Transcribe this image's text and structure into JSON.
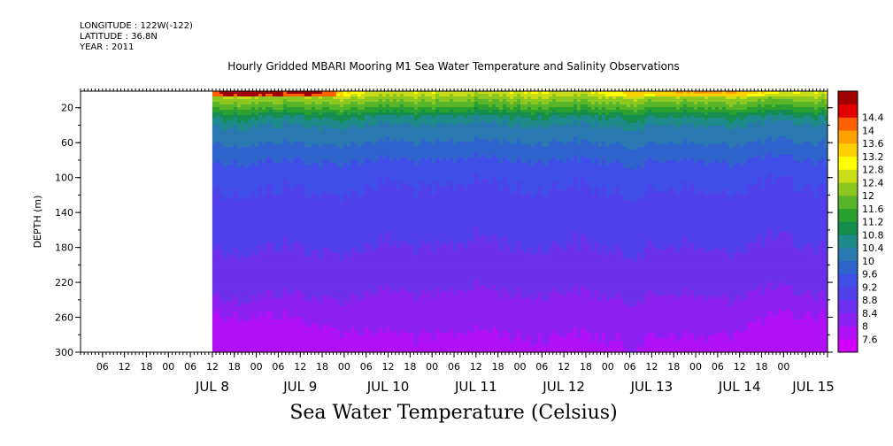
{
  "header": {
    "longitude": "LONGITUDE : 122W(-122)",
    "latitude": "LATITUDE : 36.8N",
    "year": "YEAR : 2011"
  },
  "title": "Hourly Gridded MBARI Mooring M1 Sea Water Temperature and Salinity Observations",
  "subtitle": "Sea Water Temperature (Celsius)",
  "chart_data": {
    "type": "heatmap",
    "title": "Hourly Gridded MBARI Mooring M1 Sea Water Temperature and Salinity Observations",
    "colorbar_label": "Sea Water Temperature (Celsius)",
    "ylabel": "DEPTH (m)",
    "xlabel": "",
    "xlim": [
      "2011-07-07T00:00",
      "2011-07-15T12:00"
    ],
    "data_start": "2011-07-08T12:00",
    "ylim": [
      300,
      1
    ],
    "y_inverted": true,
    "y_ticks": [
      20,
      60,
      100,
      140,
      180,
      220,
      260,
      300
    ],
    "x_hour_ticks": [
      "06",
      "12",
      "18",
      "00",
      "06",
      "12",
      "18",
      "00",
      "06",
      "12",
      "18",
      "00",
      "06",
      "12",
      "18",
      "00",
      "06",
      "12",
      "18",
      "00",
      "06",
      "12",
      "18",
      "00",
      "06",
      "12",
      "18",
      "00",
      "06",
      "12",
      "18",
      "00"
    ],
    "x_day_labels": [
      "JUL  8",
      "JUL  9",
      "JUL 10",
      "JUL 11",
      "JUL 12",
      "JUL 13",
      "JUL 14",
      "JUL 15"
    ],
    "colorbar_levels": [
      7.6,
      8,
      8.4,
      8.8,
      9.2,
      9.6,
      10,
      10.4,
      10.8,
      11.2,
      11.6,
      12,
      12.4,
      12.8,
      13.2,
      13.6,
      14,
      14.4
    ],
    "colorbar_tick_labels": [
      "7.6",
      "8",
      "8.4",
      "8.8",
      "9.2",
      "9.6",
      "10",
      "10.4",
      "10.8",
      "11.2",
      "11.6",
      "12",
      "12.4",
      "12.8",
      "13.2",
      "13.6",
      "14",
      "14.4"
    ],
    "colorbar_colors": [
      "#d000ff",
      "#b010f8",
      "#8c20f0",
      "#6c30ec",
      "#5040ea",
      "#3e4ee6",
      "#2e64cc",
      "#2a78b0",
      "#1f8a8a",
      "#148e4c",
      "#2aa030",
      "#58b428",
      "#8cc820",
      "#c8dc18",
      "#ffff00",
      "#ffd000",
      "#ffa000",
      "#ff6000",
      "#e00000",
      "#a00000"
    ],
    "profile_depth": [
      1,
      10,
      20,
      30,
      40,
      60,
      80,
      100,
      140,
      180,
      220,
      260,
      280,
      300
    ],
    "profile_temp": [
      12.8,
      12.2,
      11.6,
      10.8,
      10.4,
      10.0,
      9.6,
      9.3,
      9.0,
      8.8,
      8.5,
      8.2,
      8.0,
      7.9
    ],
    "missing_region": "Jul 7 00:00 – Jul 8 12:00 (no data)"
  }
}
